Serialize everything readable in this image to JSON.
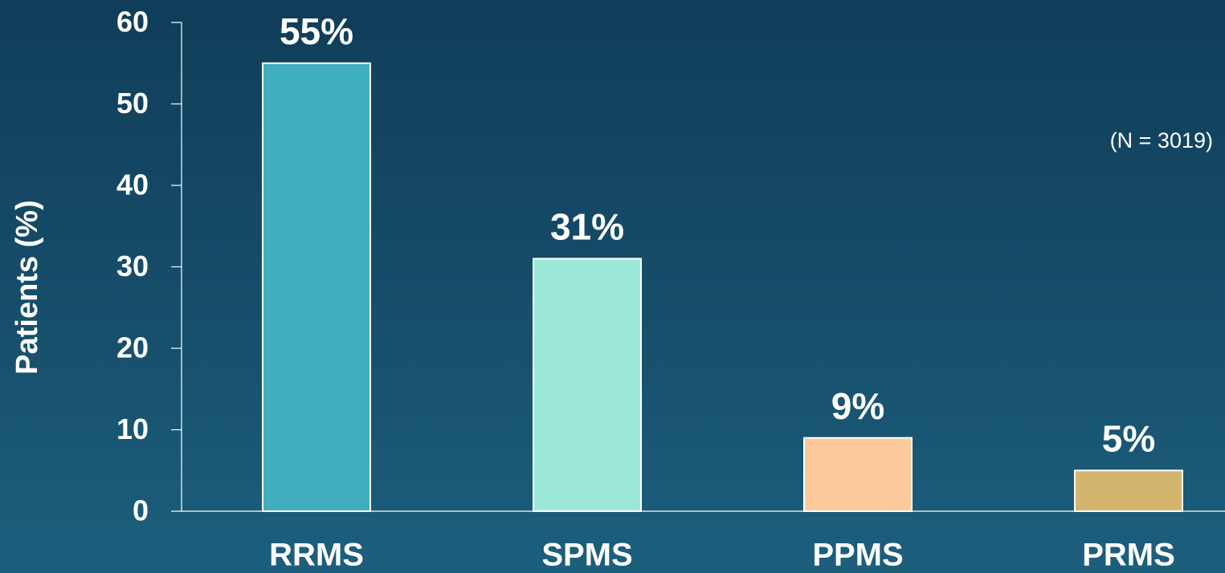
{
  "chart_data": {
    "type": "bar",
    "y_label": "Patients (%)",
    "annotation": "(N = 3019)",
    "categories": [
      "RRMS",
      "SPMS",
      "PPMS",
      "PRMS"
    ],
    "values": [
      55,
      31,
      9,
      5
    ],
    "value_labels": [
      "55%",
      "31%",
      "9%",
      "5%"
    ],
    "colors": [
      "#41aec0",
      "#9be8d8",
      "#fbc99a",
      "#d4b56e"
    ],
    "ylim": [
      0,
      60
    ],
    "yticks": [
      0,
      10,
      20,
      30,
      40,
      50,
      60
    ],
    "grid": false
  }
}
